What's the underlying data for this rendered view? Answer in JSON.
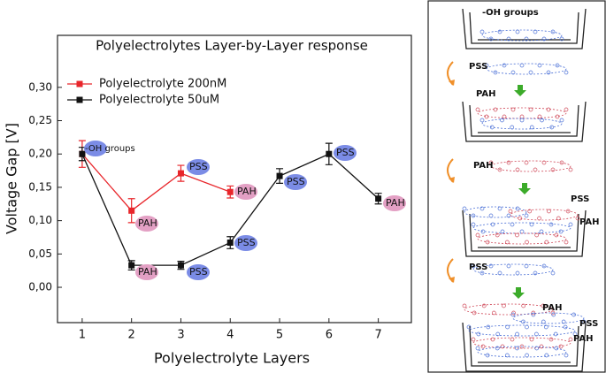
{
  "chart_data": {
    "type": "line",
    "title": "Polyelectrolytes Layer-by-Layer response",
    "x_label": "Polyelectrolyte  Layers",
    "y_label": "Voltage Gap [V]",
    "xlim": [
      0.5,
      7.67
    ],
    "xticks": [
      1,
      2,
      3,
      4,
      5,
      6,
      7
    ],
    "ylim": [
      -0.053,
      0.378
    ],
    "yticks": [
      {
        "value": 0,
        "label": "0,00"
      },
      {
        "value": 0.05,
        "label": "0,05"
      },
      {
        "value": 0.1,
        "label": "0,10"
      },
      {
        "value": 0.15,
        "label": "0,15"
      },
      {
        "value": 0.2,
        "label": "0,20"
      },
      {
        "value": 0.25,
        "label": "0,25"
      },
      {
        "value": 0.3,
        "label": "0,30"
      }
    ],
    "legend": "upper left",
    "series": [
      {
        "name": "Polyelectrolyte 200nM",
        "color": "#e8262b",
        "x": [
          1,
          2,
          3,
          4
        ],
        "values": [
          0.2,
          0.115,
          0.171,
          0.143
        ],
        "errors": [
          0.02,
          0.018,
          0.012,
          0.009
        ]
      },
      {
        "name": "Polyelectrolyte 50uM",
        "color": "#111111",
        "x": [
          1,
          2,
          3,
          4,
          5,
          6,
          7
        ],
        "values": [
          0.2,
          0.033,
          0.033,
          0.067,
          0.167,
          0.2,
          0.133
        ],
        "errors": [
          0.01,
          0.007,
          0.006,
          0.009,
          0.011,
          0.016,
          0.008
        ]
      }
    ],
    "annotations": [
      "-OH groups",
      "PAH",
      "PSS",
      "PAH",
      "PAH",
      "PSS",
      "PSS",
      "PSS",
      "PSS",
      "PAH"
    ]
  },
  "diagram": {
    "labels": [
      "-OH groups",
      "PSS",
      "PAH",
      "PAH",
      "PSS",
      "PAH",
      "PSS",
      "PAH",
      "PSS",
      "PAH"
    ]
  }
}
